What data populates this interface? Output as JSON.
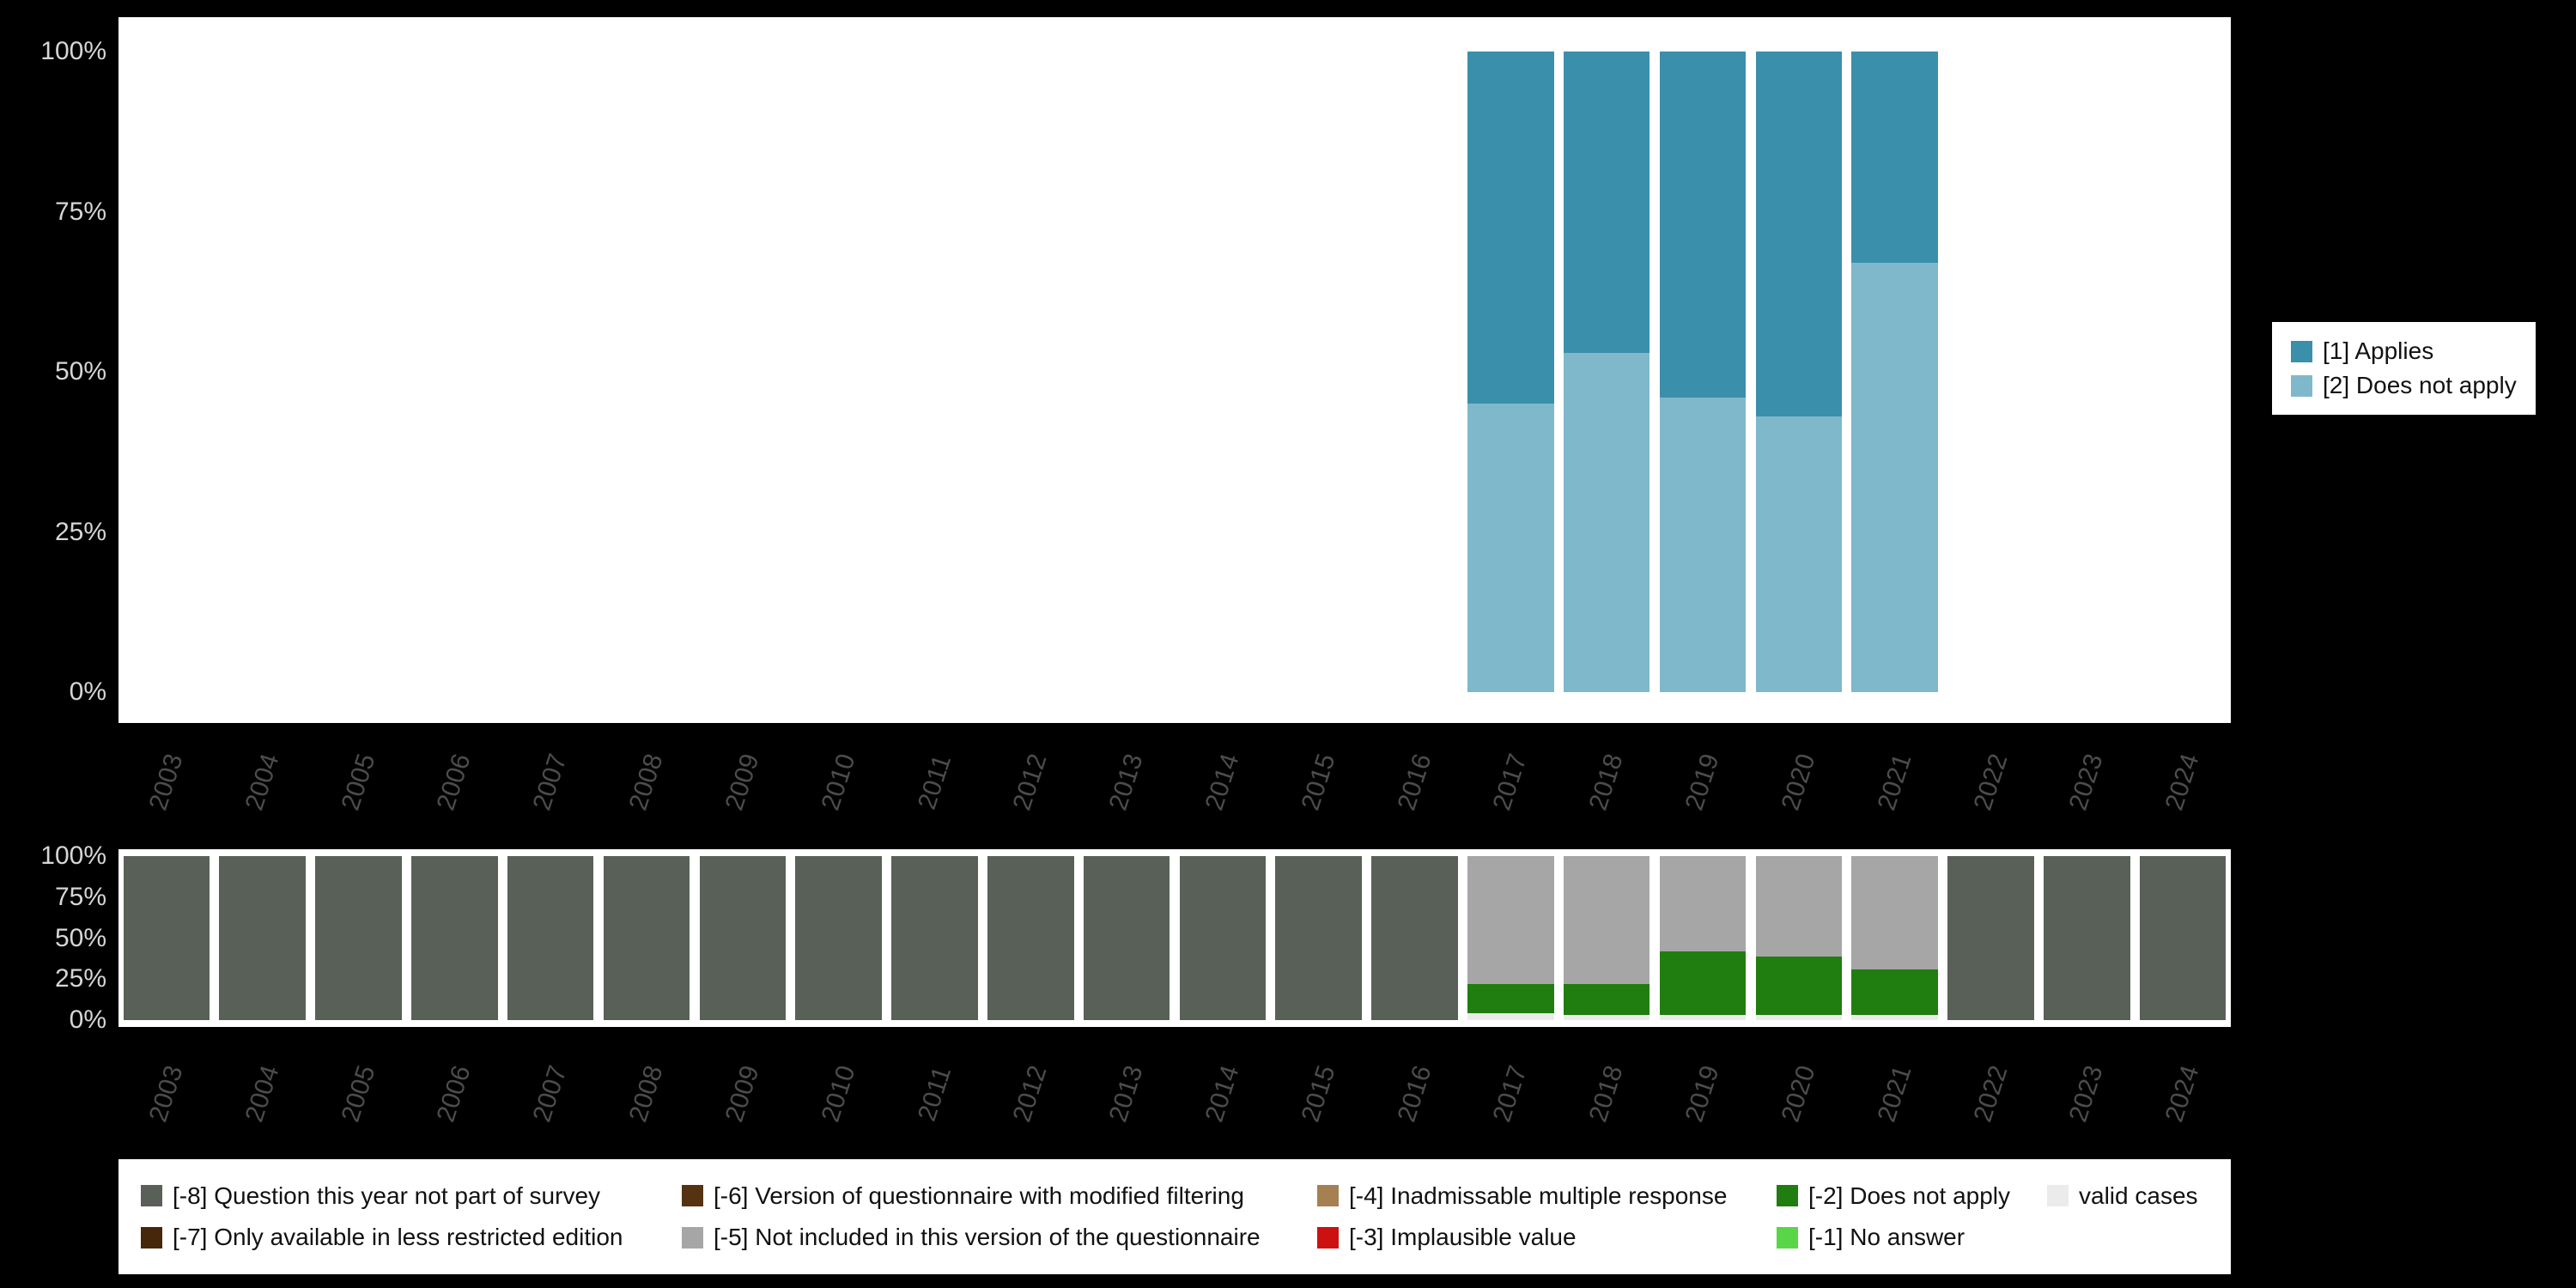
{
  "styles": {
    "background": "#000000",
    "panel_background": "#ffffff",
    "y_tick_color": "#d6d6d6",
    "x_tick_color": "#4c4c4c",
    "legend_text_color": "#111111"
  },
  "chart_data": [
    {
      "id": "variable-distribution-by-year",
      "type": "bar",
      "stacked": true,
      "unit": "percent",
      "ylim": [
        0,
        100
      ],
      "grid": false,
      "legend_position": "right",
      "categories": [
        "2003",
        "2004",
        "2005",
        "2006",
        "2007",
        "2008",
        "2009",
        "2010",
        "2011",
        "2012",
        "2013",
        "2014",
        "2015",
        "2016",
        "2017",
        "2018",
        "2019",
        "2020",
        "2021",
        "2022",
        "2023",
        "2024"
      ],
      "y_ticks": [
        "100%",
        "75%",
        "50%",
        "25%",
        "0%"
      ],
      "series_order_note": "series listed bottom-to-top as stacked",
      "series": [
        {
          "key": "does-not-apply",
          "name": "[2] Does not apply",
          "color": "#7fb8cb",
          "values": [
            0,
            0,
            0,
            0,
            0,
            0,
            0,
            0,
            0,
            0,
            0,
            0,
            0,
            0,
            45,
            53,
            46,
            43,
            67,
            0,
            0,
            0
          ]
        },
        {
          "key": "applies",
          "name": "[1] Applies",
          "color": "#3a8fab",
          "values": [
            0,
            0,
            0,
            0,
            0,
            0,
            0,
            0,
            0,
            0,
            0,
            0,
            0,
            0,
            55,
            47,
            54,
            57,
            33,
            0,
            0,
            0
          ]
        }
      ],
      "legend": [
        {
          "key": "applies",
          "label": "[1] Applies",
          "color": "#3a8fab"
        },
        {
          "key": "does-not-apply",
          "label": "[2] Does not apply",
          "color": "#7fb8cb"
        }
      ]
    },
    {
      "id": "missing-values-by-year",
      "type": "bar",
      "stacked": true,
      "unit": "percent",
      "ylim": [
        0,
        100
      ],
      "grid": false,
      "legend_position": "bottom",
      "categories": [
        "2003",
        "2004",
        "2005",
        "2006",
        "2007",
        "2008",
        "2009",
        "2010",
        "2011",
        "2012",
        "2013",
        "2014",
        "2015",
        "2016",
        "2017",
        "2018",
        "2019",
        "2020",
        "2021",
        "2022",
        "2023",
        "2024"
      ],
      "y_ticks": [
        "100%",
        "75%",
        "50%",
        "25%",
        "0%"
      ],
      "series_order_note": "series listed bottom-to-top as stacked",
      "series": [
        {
          "key": "valid-cases",
          "name": "valid cases",
          "color": "#ebebeb",
          "values": [
            0,
            0,
            0,
            0,
            0,
            0,
            0,
            0,
            0,
            0,
            0,
            0,
            0,
            0,
            4,
            3,
            3,
            3,
            3,
            0,
            0,
            0
          ]
        },
        {
          "key": "minus2-does-not-apply",
          "name": "[-2] Does not apply",
          "color": "#207d10",
          "values": [
            0,
            0,
            0,
            0,
            0,
            0,
            0,
            0,
            0,
            0,
            0,
            0,
            0,
            0,
            18,
            19,
            39,
            36,
            28,
            0,
            0,
            0
          ]
        },
        {
          "key": "minus5-not-included",
          "name": "[-5] Not included in this version of the questionnaire",
          "color": "#a6a6a6",
          "values": [
            0,
            0,
            0,
            0,
            0,
            0,
            0,
            0,
            0,
            0,
            0,
            0,
            0,
            0,
            78,
            78,
            58,
            61,
            69,
            0,
            0,
            0
          ]
        },
        {
          "key": "minus8-not-part-of-survey",
          "name": "[-8] Question this year not part of survey",
          "color": "#586058",
          "values": [
            100,
            100,
            100,
            100,
            100,
            100,
            100,
            100,
            100,
            100,
            100,
            100,
            100,
            100,
            0,
            0,
            0,
            0,
            0,
            100,
            100,
            100
          ]
        }
      ],
      "legend": [
        {
          "key": "m8",
          "label": "[-8] Question this year not part of survey",
          "color": "#586058"
        },
        {
          "key": "m6",
          "label": "[-6] Version of questionnaire with modified filtering",
          "color": "#553312"
        },
        {
          "key": "m4",
          "label": "[-4] Inadmissable multiple response",
          "color": "#a58050"
        },
        {
          "key": "m2",
          "label": "[-2] Does not apply",
          "color": "#207d10"
        },
        {
          "key": "valid",
          "label": "valid cases",
          "color": "#ebebeb"
        },
        {
          "key": "m7",
          "label": "[-7] Only available in less restricted edition",
          "color": "#46270b"
        },
        {
          "key": "m5",
          "label": "[-5] Not included in this version of the questionnaire",
          "color": "#a6a6a6"
        },
        {
          "key": "m3",
          "label": "[-3] Implausible value",
          "color": "#cc1111"
        },
        {
          "key": "m1",
          "label": "[-1] No answer",
          "color": "#58d648"
        }
      ]
    }
  ]
}
